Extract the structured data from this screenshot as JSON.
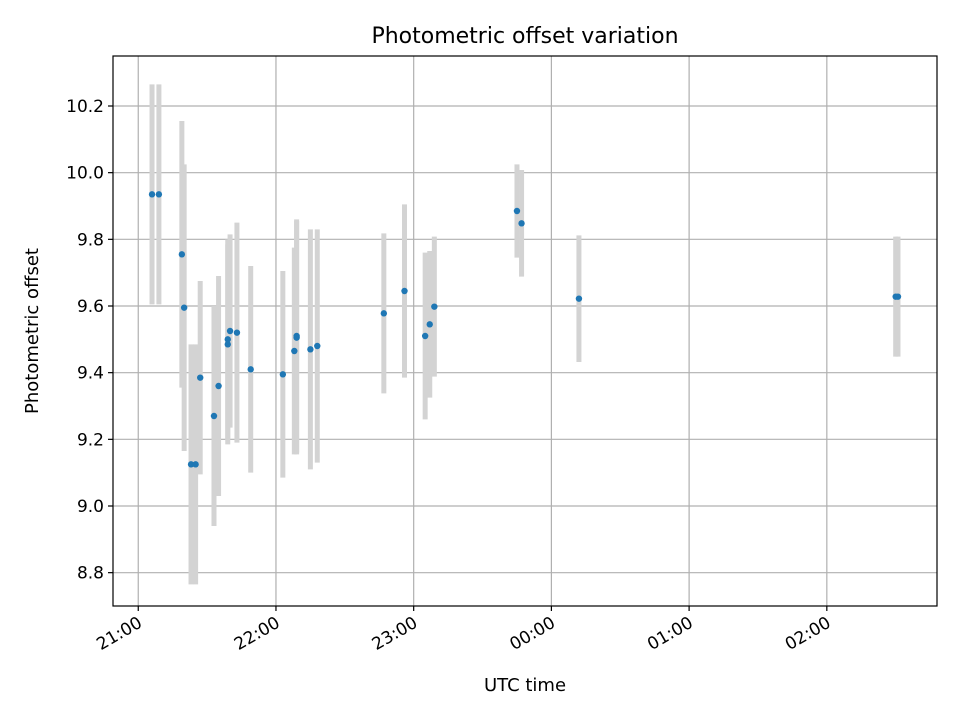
{
  "chart_data": {
    "type": "scatter",
    "title": "Photometric offset variation",
    "xlabel": "UTC time",
    "ylabel": "Photometric offset",
    "x_ticks": [
      "21:00",
      "22:00",
      "23:00",
      "00:00",
      "01:00",
      "02:00"
    ],
    "y_ticks": [
      "8.8",
      "9.0",
      "9.2",
      "9.4",
      "9.6",
      "9.8",
      "10.0",
      "10.2"
    ],
    "x_start": "21:00",
    "xlim": [
      "20:49",
      "02:48"
    ],
    "ylim": [
      8.7,
      10.35
    ],
    "grid": true,
    "colors": {
      "point": "#1f77b4",
      "errorbar": "#d3d3d3",
      "grid": "#b0b0b0"
    },
    "series": [
      {
        "points": [
          {
            "x": "21:06",
            "y": 9.935,
            "err": 0.33
          },
          {
            "x": "21:09",
            "y": 9.935,
            "err": 0.33
          },
          {
            "x": "21:19",
            "y": 9.755,
            "err": 0.4
          },
          {
            "x": "21:20",
            "y": 9.595,
            "err": 0.43
          },
          {
            "x": "21:23",
            "y": 9.125,
            "err": 0.36
          },
          {
            "x": "21:25",
            "y": 9.125,
            "err": 0.36
          },
          {
            "x": "21:27",
            "y": 9.385,
            "err": 0.29
          },
          {
            "x": "21:33",
            "y": 9.27,
            "err": 0.33
          },
          {
            "x": "21:35",
            "y": 9.36,
            "err": 0.33
          },
          {
            "x": "21:39",
            "y": 9.485,
            "err": 0.3
          },
          {
            "x": "21:39",
            "y": 9.5,
            "err": 0.3
          },
          {
            "x": "21:40",
            "y": 9.525,
            "err": 0.29
          },
          {
            "x": "21:43",
            "y": 9.52,
            "err": 0.33
          },
          {
            "x": "21:49",
            "y": 9.41,
            "err": 0.31
          },
          {
            "x": "22:03",
            "y": 9.395,
            "err": 0.31
          },
          {
            "x": "22:08",
            "y": 9.465,
            "err": 0.31
          },
          {
            "x": "22:09",
            "y": 9.51,
            "err": 0.35
          },
          {
            "x": "22:09",
            "y": 9.505,
            "err": 0.35
          },
          {
            "x": "22:15",
            "y": 9.47,
            "err": 0.36
          },
          {
            "x": "22:18",
            "y": 9.48,
            "err": 0.35
          },
          {
            "x": "22:47",
            "y": 9.578,
            "err": 0.24
          },
          {
            "x": "22:56",
            "y": 9.645,
            "err": 0.26
          },
          {
            "x": "23:05",
            "y": 9.51,
            "err": 0.25
          },
          {
            "x": "23:07",
            "y": 9.545,
            "err": 0.22
          },
          {
            "x": "23:09",
            "y": 9.598,
            "err": 0.21
          },
          {
            "x": "23:45",
            "y": 9.885,
            "err": 0.14
          },
          {
            "x": "23:47",
            "y": 9.848,
            "err": 0.16
          },
          {
            "x": "00:12",
            "y": 9.622,
            "err": 0.19
          },
          {
            "x": "02:30",
            "y": 9.628,
            "err": 0.18
          },
          {
            "x": "02:31",
            "y": 9.628,
            "err": 0.18
          }
        ]
      }
    ]
  }
}
